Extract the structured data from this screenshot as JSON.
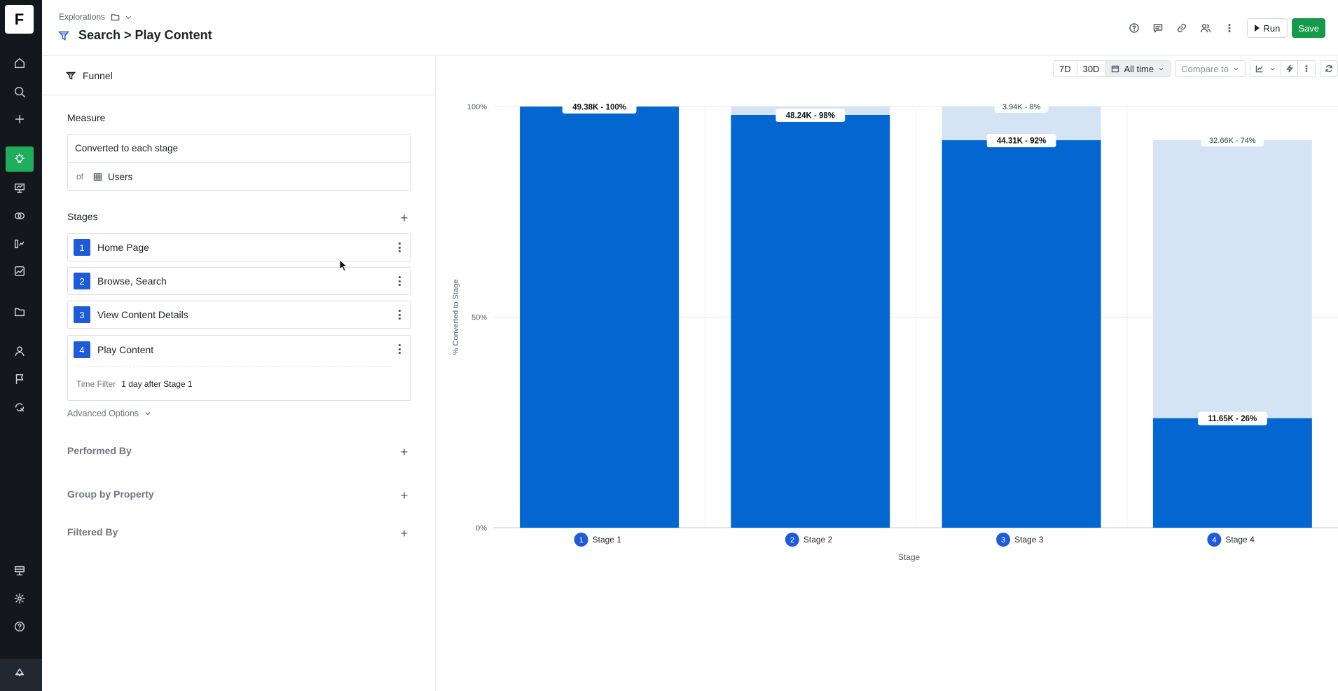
{
  "app": {
    "logo_letter": "F"
  },
  "rail": {
    "items": [
      {
        "icon": "home-icon"
      },
      {
        "icon": "search-icon"
      },
      {
        "icon": "plus-icon"
      },
      {
        "icon": "lightbulb-icon",
        "active": true
      },
      {
        "icon": "presentation-icon"
      },
      {
        "icon": "circles-icon"
      },
      {
        "icon": "metrics-icon"
      },
      {
        "icon": "line-chart-icon"
      },
      {
        "icon": "folder-icon"
      },
      {
        "icon": "user-icon"
      },
      {
        "icon": "flag-icon"
      },
      {
        "icon": "integration-icon"
      },
      {
        "icon": "data-icon"
      },
      {
        "icon": "gear-icon"
      },
      {
        "icon": "help-icon"
      },
      {
        "icon": "brand-icon"
      }
    ]
  },
  "header": {
    "breadcrumb": "Explorations",
    "title": "Search > Play Content",
    "run_label": "Run",
    "save_label": "Save"
  },
  "panel": {
    "mode_label": "Funnel",
    "measure": {
      "title": "Measure",
      "metric": "Converted to each stage",
      "of_label": "of",
      "entity": "Users"
    },
    "stages_title": "Stages",
    "stages": [
      {
        "num": "1",
        "name": "Home Page"
      },
      {
        "num": "2",
        "name": "Browse, Search"
      },
      {
        "num": "3",
        "name": "View Content Details"
      },
      {
        "num": "4",
        "name": "Play Content"
      }
    ],
    "time_filter": {
      "label": "Time Filter",
      "value": "1 day after Stage 1"
    },
    "advanced_options": "Advanced Options",
    "performed_by": "Performed By",
    "group_by": "Group by Property",
    "filtered_by": "Filtered By"
  },
  "toolbar": {
    "range_7d": "7D",
    "range_30d": "30D",
    "range_all": "All time",
    "compare": "Compare to"
  },
  "colors": {
    "converted": "#0467d1",
    "dropped": "#d5e4f5",
    "accent_green": "#1fae5c",
    "stage_badge": "#1d5bd8"
  },
  "chart_data": {
    "type": "bar",
    "stacked": true,
    "categories": [
      "Stage 1",
      "Stage 2",
      "Stage 3",
      "Stage 4"
    ],
    "series": [
      {
        "values": [
          100,
          98,
          92,
          26
        ]
      },
      {
        "values": [
          0,
          2,
          8,
          74
        ]
      }
    ],
    "labels_converted": [
      "49.38K - 100%",
      "48.24K - 98%",
      "44.31K - 92%",
      "11.65K - 26%"
    ],
    "labels_dropped": [
      "",
      "",
      "3.94K - 8%",
      "32.66K - 74%"
    ],
    "dropped_top": [
      100,
      100,
      100,
      92
    ],
    "xlabel": "Stage",
    "ylabel": "% Converted to Stage",
    "ytick_labels": [
      "0%",
      "50%",
      "100%"
    ],
    "yticks": [
      0,
      50,
      100
    ],
    "ylim": [
      0,
      100
    ]
  }
}
